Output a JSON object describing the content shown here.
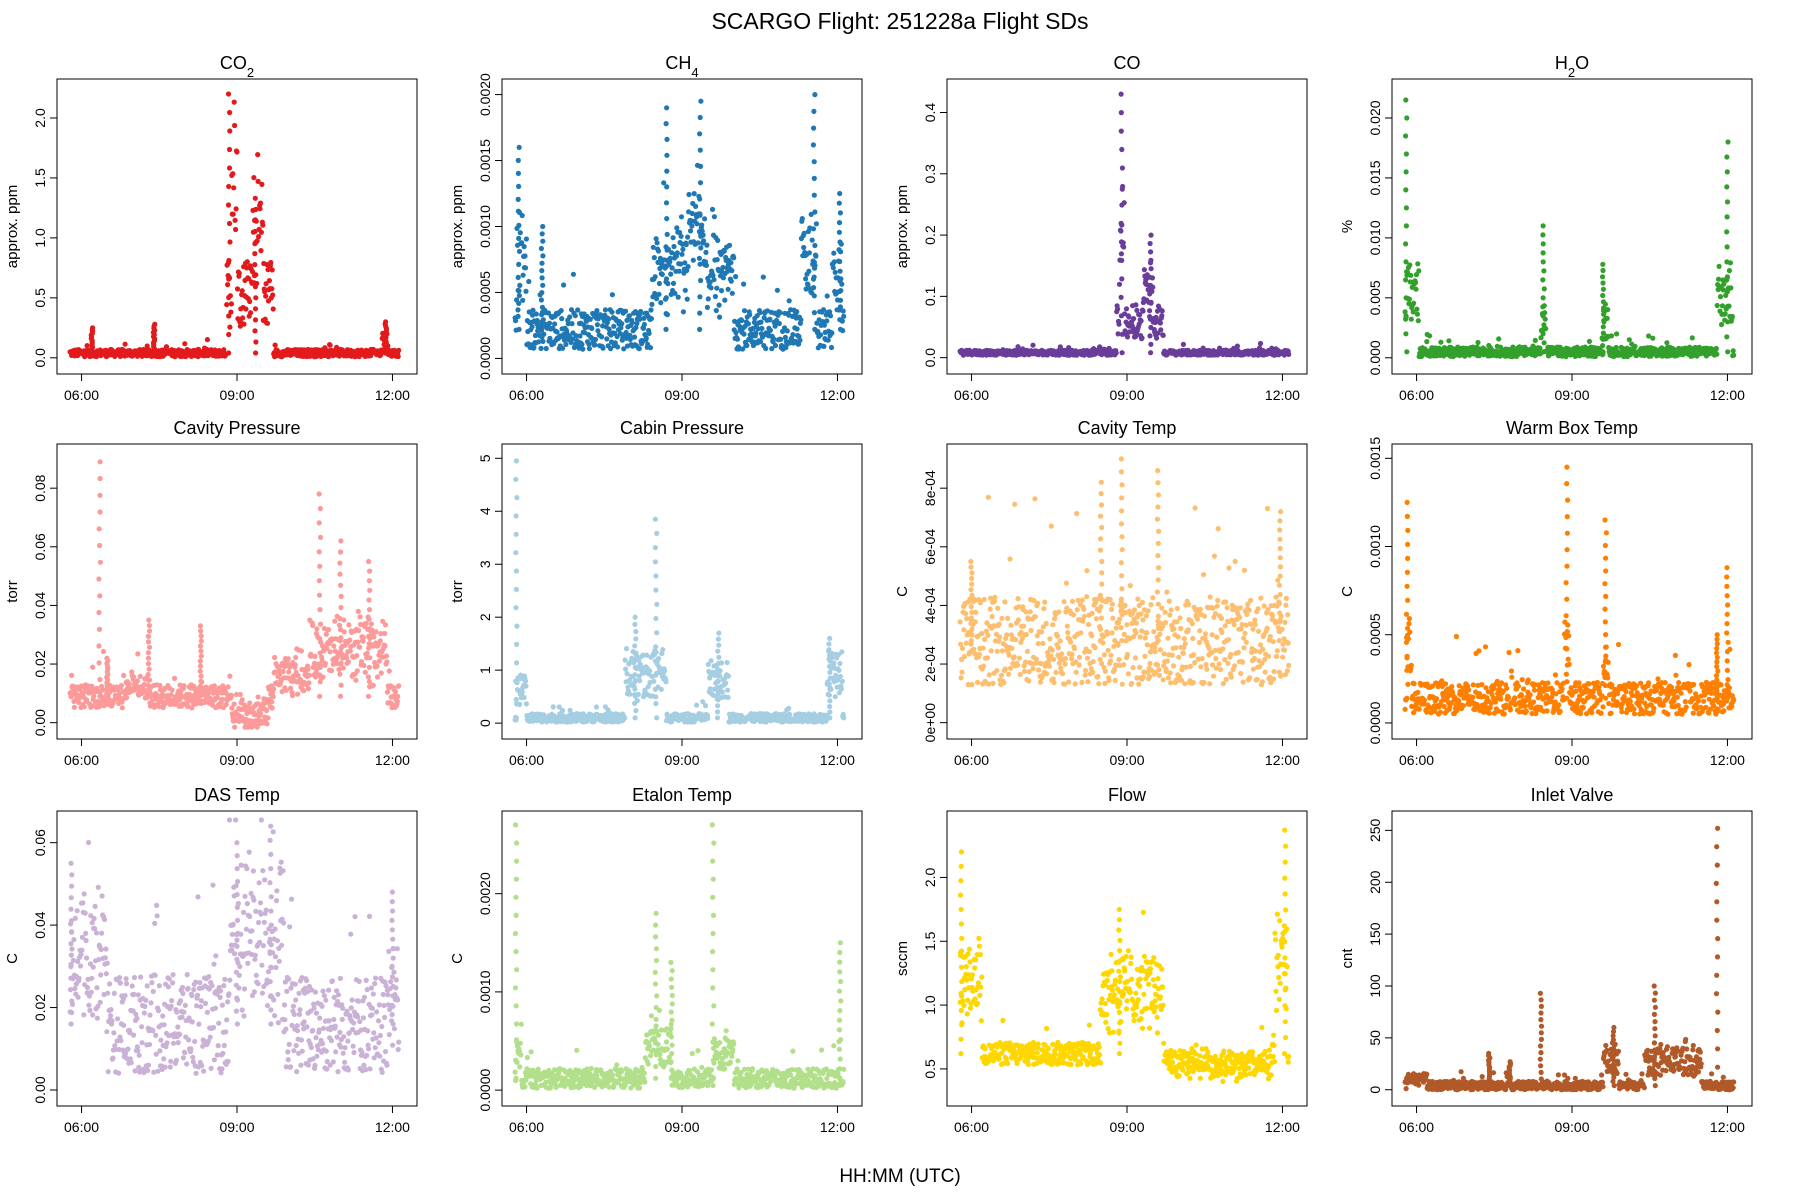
{
  "figure": {
    "title": "SCARGO Flight: 251228a  Flight SDs",
    "xlabel": "HH:MM (UTC)"
  },
  "chart_data": [
    {
      "type": "scatter",
      "title": "CO",
      "title_sub": "2",
      "ylabel": "approx. ppm",
      "color": "#E31A1C",
      "ylim": [
        -0.06,
        2.25
      ],
      "yticks": [
        0.0,
        0.5,
        1.0,
        1.5,
        2.0
      ],
      "ytick_labels": [
        "0.0",
        "0.5",
        "1.0",
        "1.5",
        "2.0"
      ],
      "xlim": [
        5.7,
        12.3
      ],
      "xticks": [
        6,
        9,
        12
      ],
      "xtick_labels": [
        "06:00",
        "09:00",
        "12:00"
      ],
      "profile": {
        "base": 0.04,
        "noise": 0.03,
        "bursts": [
          [
            8.8,
            9.7,
            0.6
          ],
          [
            8.9,
            9.0,
            1.3
          ],
          [
            9.3,
            9.5,
            0.7
          ],
          [
            11.8,
            11.9,
            0.15
          ]
        ]
      },
      "peaks": [
        [
          8.85,
          2.2
        ],
        [
          9.35,
          1.33
        ],
        [
          6.2,
          0.25
        ],
        [
          11.87,
          0.3
        ],
        [
          7.4,
          0.28
        ]
      ]
    },
    {
      "type": "scatter",
      "title": "CH",
      "title_sub": "4",
      "ylabel": "approx. ppm",
      "color": "#1F78B4",
      "ylim": [
        -5e-05,
        0.00205
      ],
      "yticks": [
        0.0,
        0.0005,
        0.001,
        0.0015,
        0.002
      ],
      "ytick_labels": [
        "0.0000",
        "0.0005",
        "0.0010",
        "0.0015",
        "0.0020"
      ],
      "xlim": [
        5.7,
        12.3
      ],
      "xticks": [
        6,
        9,
        12
      ],
      "xtick_labels": [
        "06:00",
        "09:00",
        "12:00"
      ],
      "profile": {
        "base": 0.00022,
        "noise": 0.00015,
        "bursts": [
          [
            5.8,
            6.0,
            0.0006
          ],
          [
            8.4,
            10.0,
            0.0005
          ],
          [
            9.1,
            9.4,
            0.0004
          ],
          [
            11.3,
            11.6,
            0.0006
          ],
          [
            11.9,
            12.1,
            0.0004
          ]
        ]
      },
      "peaks": [
        [
          5.85,
          0.0016
        ],
        [
          8.7,
          0.0019
        ],
        [
          9.35,
          0.00195
        ],
        [
          11.55,
          0.002
        ],
        [
          12.05,
          0.00125
        ],
        [
          6.3,
          0.001
        ]
      ]
    },
    {
      "type": "scatter",
      "title": "CO",
      "title_sub": "",
      "ylabel": "approx. ppm",
      "color": "#6A3D9A",
      "ylim": [
        -0.012,
        0.44
      ],
      "yticks": [
        0.0,
        0.1,
        0.2,
        0.3,
        0.4
      ],
      "ytick_labels": [
        "0.0",
        "0.1",
        "0.2",
        "0.3",
        "0.4"
      ],
      "xlim": [
        5.7,
        12.3
      ],
      "xticks": [
        6,
        9,
        12
      ],
      "xtick_labels": [
        "06:00",
        "09:00",
        "12:00"
      ],
      "profile": {
        "base": 0.008,
        "noise": 0.004,
        "bursts": [
          [
            8.8,
            9.7,
            0.06
          ],
          [
            8.85,
            8.95,
            0.15
          ],
          [
            9.3,
            9.5,
            0.07
          ]
        ]
      },
      "peaks": [
        [
          8.9,
          0.43
        ],
        [
          9.45,
          0.2
        ]
      ]
    },
    {
      "type": "scatter",
      "title": "H",
      "title_sub": "2",
      "title_tail": "O",
      "ylabel": "%",
      "color": "#33A02C",
      "ylim": [
        -0.0006,
        0.0225
      ],
      "yticks": [
        0.0,
        0.005,
        0.01,
        0.015,
        0.02
      ],
      "ytick_labels": [
        "0.000",
        "0.005",
        "0.010",
        "0.015",
        "0.020"
      ],
      "xlim": [
        5.7,
        12.3
      ],
      "xticks": [
        6,
        9,
        12
      ],
      "xtick_labels": [
        "06:00",
        "09:00",
        "12:00"
      ],
      "profile": {
        "base": 0.0005,
        "noise": 0.0004,
        "bursts": [
          [
            5.75,
            6.05,
            0.006
          ],
          [
            8.4,
            8.5,
            0.003
          ],
          [
            9.6,
            9.7,
            0.003
          ],
          [
            11.8,
            12.1,
            0.006
          ]
        ]
      },
      "peaks": [
        [
          5.8,
          0.0215
        ],
        [
          8.45,
          0.011
        ],
        [
          9.6,
          0.0078
        ],
        [
          12.0,
          0.018
        ]
      ]
    },
    {
      "type": "scatter",
      "title": "Cavity Pressure",
      "ylabel": "torr",
      "color": "#FB9A99",
      "ylim": [
        -0.0025,
        0.092
      ],
      "yticks": [
        0.0,
        0.02,
        0.04,
        0.06,
        0.08
      ],
      "ytick_labels": [
        "0.00",
        "0.02",
        "0.04",
        "0.06",
        "0.08"
      ],
      "xlim": [
        5.7,
        12.3
      ],
      "xticks": [
        6,
        9,
        12
      ],
      "xtick_labels": [
        "06:00",
        "09:00",
        "12:00"
      ],
      "profile": {
        "base": 0.009,
        "noise": 0.004,
        "bursts": [
          [
            6.8,
            7.3,
            0.004
          ],
          [
            8.9,
            9.6,
            -0.007
          ],
          [
            9.7,
            10.4,
            0.008
          ],
          [
            10.4,
            11.9,
            0.018
          ]
        ]
      },
      "peaks": [
        [
          6.35,
          0.089
        ],
        [
          7.3,
          0.035
        ],
        [
          8.3,
          0.033
        ],
        [
          10.6,
          0.078
        ],
        [
          11.0,
          0.062
        ],
        [
          11.55,
          0.055
        ],
        [
          6.5,
          0.022
        ]
      ]
    },
    {
      "type": "scatter",
      "title": "Cabin Pressure",
      "ylabel": "torr",
      "color": "#A6CEE3",
      "ylim": [
        -0.13,
        5.1
      ],
      "yticks": [
        0,
        1,
        2,
        3,
        4,
        5
      ],
      "ytick_labels": [
        "0",
        "1",
        "2",
        "3",
        "4",
        "5"
      ],
      "xlim": [
        5.7,
        12.3
      ],
      "xticks": [
        6,
        9,
        12
      ],
      "xtick_labels": [
        "06:00",
        "09:00",
        "12:00"
      ],
      "profile": {
        "base": 0.1,
        "noise": 0.08,
        "bursts": [
          [
            5.8,
            6.0,
            0.6
          ],
          [
            7.9,
            8.7,
            1.0
          ],
          [
            9.5,
            9.9,
            0.8
          ],
          [
            11.8,
            12.1,
            1.0
          ]
        ]
      },
      "peaks": [
        [
          5.8,
          4.95
        ],
        [
          8.5,
          3.85
        ],
        [
          8.1,
          2.0
        ],
        [
          9.7,
          1.7
        ],
        [
          11.85,
          1.6
        ]
      ]
    },
    {
      "type": "scatter",
      "title": "Cavity Temp",
      "ylabel": "C",
      "color": "#FDBF6F",
      "ylim": [
        -2.5e-05,
        0.00092
      ],
      "yticks": [
        0.0,
        0.0002,
        0.0004,
        0.0006,
        0.0008
      ],
      "ytick_labels": [
        "0e+00",
        "2e-04",
        "4e-04",
        "6e-04",
        "8e-04"
      ],
      "xlim": [
        5.7,
        12.3
      ],
      "xticks": [
        6,
        9,
        12
      ],
      "xtick_labels": [
        "06:00",
        "09:00",
        "12:00"
      ],
      "profile": {
        "base": 0.00028,
        "noise": 0.00015,
        "bursts": []
      },
      "peaks": [
        [
          8.9,
          0.0009
        ],
        [
          9.6,
          0.00086
        ],
        [
          8.5,
          0.00082
        ],
        [
          11.95,
          0.00072
        ],
        [
          6.0,
          0.00055
        ]
      ]
    },
    {
      "type": "scatter",
      "title": "Warm Box Temp",
      "ylabel": "C",
      "color": "#FF7F00",
      "ylim": [
        -4e-05,
        0.00153
      ],
      "yticks": [
        0.0,
        0.0005,
        0.001,
        0.0015
      ],
      "ytick_labels": [
        "0.0000",
        "0.0005",
        "0.0010",
        "0.0015"
      ],
      "xlim": [
        5.7,
        12.3
      ],
      "xticks": [
        6,
        9,
        12
      ],
      "xtick_labels": [
        "06:00",
        "09:00",
        "12:00"
      ],
      "profile": {
        "base": 0.00014,
        "noise": 9e-05,
        "bursts": [
          [
            5.8,
            5.9,
            0.0003
          ],
          [
            8.85,
            8.95,
            0.0004
          ],
          [
            9.6,
            9.7,
            0.0002
          ]
        ]
      },
      "peaks": [
        [
          5.82,
          0.00125
        ],
        [
          8.9,
          0.00145
        ],
        [
          9.65,
          0.00115
        ],
        [
          12.0,
          0.00088
        ],
        [
          11.8,
          0.0005
        ]
      ]
    },
    {
      "type": "scatter",
      "title": "DAS Temp",
      "ylabel": "C",
      "color": "#CAB2D6",
      "ylim": [
        -0.0017,
        0.0655
      ],
      "yticks": [
        0.0,
        0.02,
        0.04,
        0.06
      ],
      "ytick_labels": [
        "0.00",
        "0.02",
        "0.04",
        "0.06"
      ],
      "xlim": [
        5.7,
        12.3
      ],
      "xticks": [
        6,
        9,
        12
      ],
      "xtick_labels": [
        "06:00",
        "09:00",
        "12:00"
      ],
      "profile": {
        "base": 0.016,
        "noise": 0.012,
        "bursts": [
          [
            5.75,
            6.5,
            0.018
          ],
          [
            8.85,
            9.9,
            0.025
          ],
          [
            11.9,
            12.1,
            0.012
          ]
        ]
      },
      "peaks": [
        [
          5.8,
          0.055
        ],
        [
          9.0,
          0.06
        ],
        [
          9.65,
          0.064
        ],
        [
          12.0,
          0.048
        ]
      ]
    },
    {
      "type": "scatter",
      "title": "Etalon Temp",
      "ylabel": "C",
      "color": "#B2DF8A",
      "ylim": [
        -7e-05,
        0.00275
      ],
      "yticks": [
        0.0,
        0.001,
        0.002
      ],
      "ytick_labels": [
        "0.0000",
        "0.0010",
        "0.0020"
      ],
      "xlim": [
        5.7,
        12.3
      ],
      "xticks": [
        6,
        9,
        12
      ],
      "xtick_labels": [
        "06:00",
        "09:00",
        "12:00"
      ],
      "profile": {
        "base": 0.00012,
        "noise": 0.0001,
        "bursts": [
          [
            5.8,
            5.9,
            0.0004
          ],
          [
            8.3,
            8.8,
            0.0004
          ],
          [
            9.6,
            10.0,
            0.0003
          ]
        ]
      },
      "peaks": [
        [
          5.8,
          0.0027
        ],
        [
          8.5,
          0.0018
        ],
        [
          9.6,
          0.0027
        ],
        [
          8.8,
          0.0013
        ],
        [
          12.05,
          0.0015
        ]
      ]
    },
    {
      "type": "scatter",
      "title": "Flow",
      "ylabel": "sccm",
      "color": "#FFD700",
      "ylim": [
        0.28,
        2.45
      ],
      "yticks": [
        0.5,
        1.0,
        1.5,
        2.0
      ],
      "ytick_labels": [
        "0.5",
        "1.0",
        "1.5",
        "2.0"
      ],
      "xlim": [
        5.7,
        12.3
      ],
      "xticks": [
        6,
        9,
        12
      ],
      "xtick_labels": [
        "06:00",
        "09:00",
        "12:00"
      ],
      "profile": {
        "base": 0.62,
        "noise": 0.09,
        "bursts": [
          [
            5.75,
            6.2,
            0.6
          ],
          [
            8.5,
            9.7,
            0.6
          ],
          [
            9.8,
            11.8,
            -0.1
          ],
          [
            11.85,
            12.1,
            0.8
          ]
        ]
      },
      "peaks": [
        [
          5.8,
          2.2
        ],
        [
          8.85,
          1.75
        ],
        [
          12.05,
          2.37
        ]
      ]
    },
    {
      "type": "scatter",
      "title": "Inlet Valve",
      "ylabel": "cnt",
      "color": "#B15928",
      "ylim": [
        -7,
        260
      ],
      "yticks": [
        0,
        50,
        100,
        150,
        200,
        250
      ],
      "ytick_labels": [
        "0",
        "50",
        "100",
        "150",
        "200",
        "250"
      ],
      "xlim": [
        5.7,
        12.3
      ],
      "xticks": [
        6,
        9,
        12
      ],
      "xtick_labels": [
        "06:00",
        "09:00",
        "12:00"
      ],
      "profile": {
        "base": 4,
        "noise": 4,
        "bursts": [
          [
            5.8,
            6.2,
            8
          ],
          [
            9.6,
            9.9,
            30
          ],
          [
            10.4,
            11.5,
            28
          ]
        ]
      },
      "peaks": [
        [
          8.4,
          93
        ],
        [
          11.8,
          252
        ],
        [
          10.6,
          100
        ],
        [
          9.8,
          60
        ],
        [
          7.4,
          35
        ],
        [
          7.8,
          27
        ]
      ]
    }
  ]
}
